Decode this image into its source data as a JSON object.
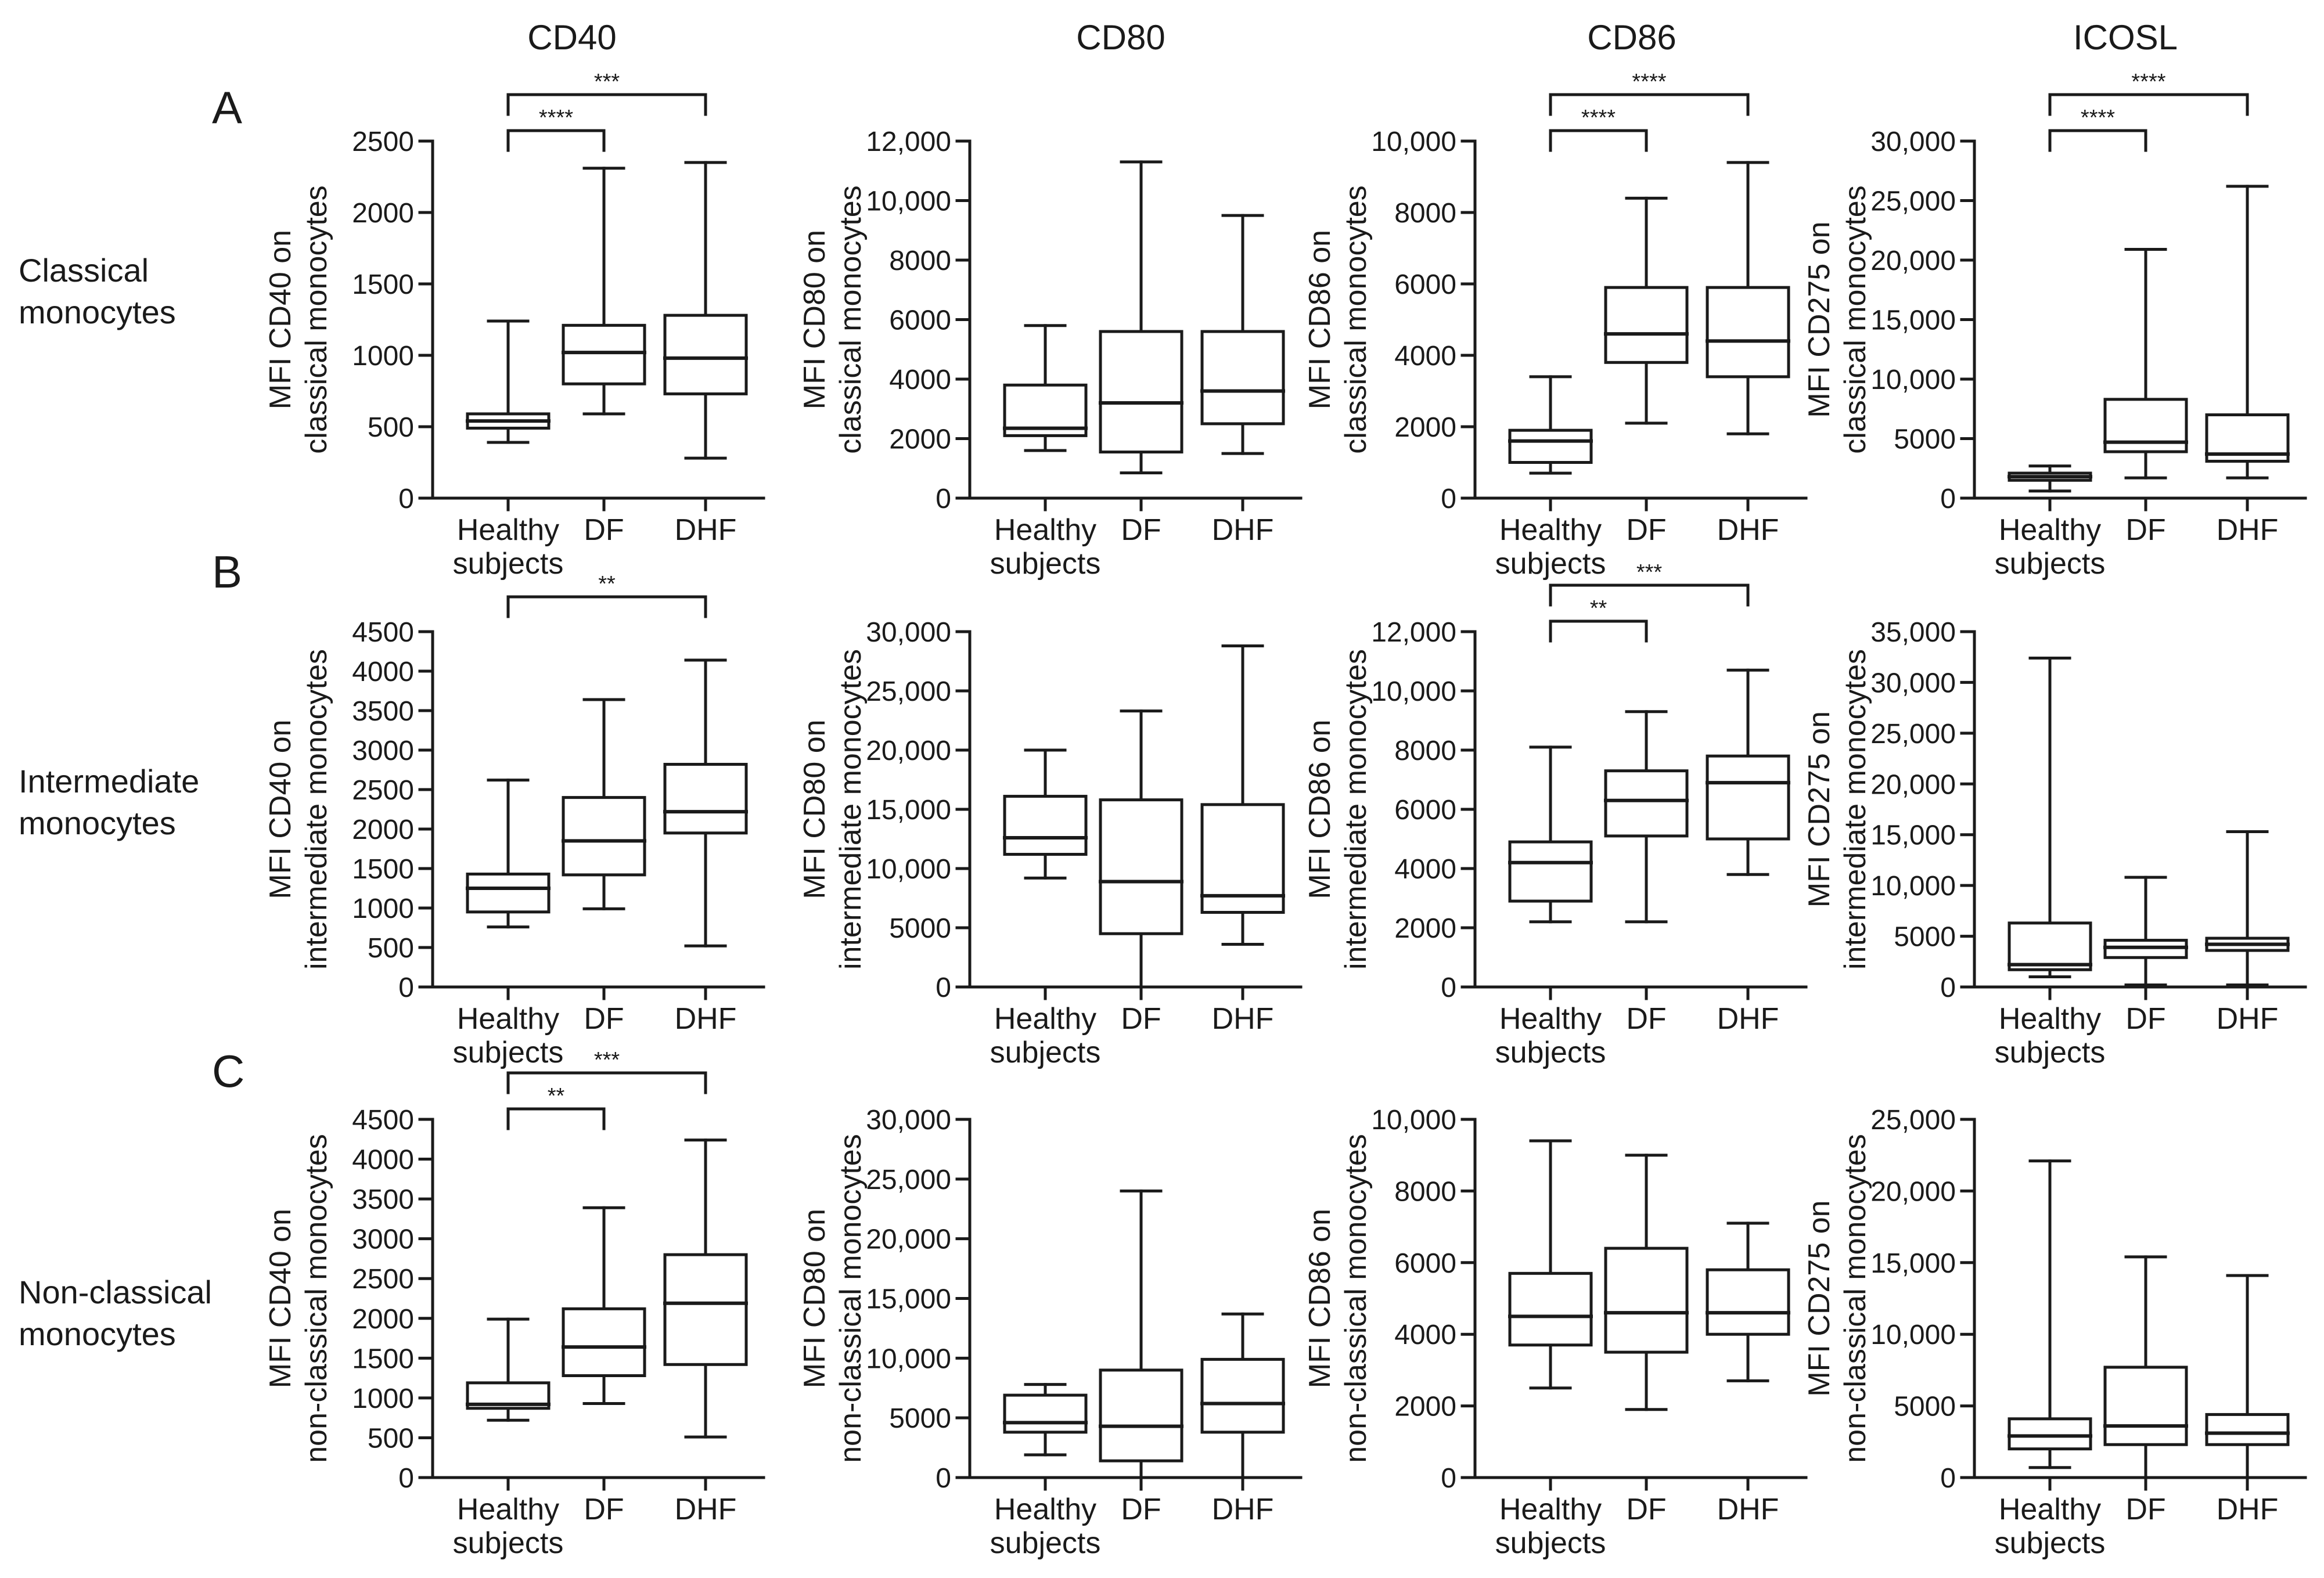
{
  "figure": {
    "column_titles": [
      "CD40",
      "CD80",
      "CD86",
      "ICOSL"
    ],
    "panel_letters": [
      "A",
      "B",
      "C"
    ],
    "row_labels": [
      [
        "Classical",
        "monocytes"
      ],
      [
        "Intermediate",
        "monocytes"
      ],
      [
        "Non-classical",
        "monocytes"
      ]
    ]
  },
  "chart_data": [
    {
      "type": "boxplot",
      "panel": "A",
      "marker": "CD40",
      "population": "Classical monocytes",
      "ylabel": [
        "MFI CD40 on",
        "classical monocytes"
      ],
      "categories": [
        [
          "Healthy",
          "subjects"
        ],
        [
          "DF"
        ],
        [
          "DHF"
        ]
      ],
      "ylim": [
        0,
        2500
      ],
      "yticks": [
        0,
        500,
        1000,
        1500,
        2000,
        2500
      ],
      "ytick_labels": [
        "0",
        "500",
        "1000",
        "1500",
        "2000",
        "2500"
      ],
      "boxes": [
        {
          "min": 390,
          "q1": 490,
          "median": 540,
          "q3": 590,
          "max": 1240
        },
        {
          "min": 590,
          "q1": 800,
          "median": 1020,
          "q3": 1210,
          "max": 2310
        },
        {
          "min": 280,
          "q1": 730,
          "median": 980,
          "q3": 1280,
          "max": 2350
        }
      ],
      "significance": [
        {
          "from": 0,
          "to": 1,
          "label": "****"
        },
        {
          "from": 0,
          "to": 2,
          "label": "***"
        }
      ]
    },
    {
      "type": "boxplot",
      "panel": "A",
      "marker": "CD80",
      "population": "Classical monocytes",
      "ylabel": [
        "MFI CD80 on",
        "classical monocytes"
      ],
      "categories": [
        [
          "Healthy",
          "subjects"
        ],
        [
          "DF"
        ],
        [
          "DHF"
        ]
      ],
      "ylim": [
        0,
        12000
      ],
      "yticks": [
        0,
        2000,
        4000,
        6000,
        8000,
        10000,
        12000
      ],
      "ytick_labels": [
        "0",
        "2000",
        "4000",
        "6000",
        "8000",
        "10,000",
        "12,000"
      ],
      "boxes": [
        {
          "min": 1600,
          "q1": 2100,
          "median": 2350,
          "q3": 3800,
          "max": 5800
        },
        {
          "min": 850,
          "q1": 1550,
          "median": 3200,
          "q3": 5600,
          "max": 11300
        },
        {
          "min": 1500,
          "q1": 2500,
          "median": 3600,
          "q3": 5600,
          "max": 9500
        }
      ],
      "significance": []
    },
    {
      "type": "boxplot",
      "panel": "A",
      "marker": "CD86",
      "population": "Classical monocytes",
      "ylabel": [
        "MFI CD86 on",
        "classical monocytes"
      ],
      "categories": [
        [
          "Healthy",
          "subjects"
        ],
        [
          "DF"
        ],
        [
          "DHF"
        ]
      ],
      "ylim": [
        0,
        10000
      ],
      "yticks": [
        0,
        2000,
        4000,
        6000,
        8000,
        10000
      ],
      "ytick_labels": [
        "0",
        "2000",
        "4000",
        "6000",
        "8000",
        "10,000"
      ],
      "boxes": [
        {
          "min": 700,
          "q1": 1000,
          "median": 1600,
          "q3": 1900,
          "max": 3400
        },
        {
          "min": 2100,
          "q1": 3800,
          "median": 4600,
          "q3": 5900,
          "max": 8400
        },
        {
          "min": 1800,
          "q1": 3400,
          "median": 4400,
          "q3": 5900,
          "max": 9400
        }
      ],
      "significance": [
        {
          "from": 0,
          "to": 1,
          "label": "****"
        },
        {
          "from": 0,
          "to": 2,
          "label": "****"
        }
      ]
    },
    {
      "type": "boxplot",
      "panel": "A",
      "marker": "ICOSL",
      "population": "Classical monocytes",
      "ylabel": [
        "MFI CD275 on",
        "classical monocytes"
      ],
      "categories": [
        [
          "Healthy",
          "subjects"
        ],
        [
          "DF"
        ],
        [
          "DHF"
        ]
      ],
      "ylim": [
        0,
        30000
      ],
      "yticks": [
        0,
        5000,
        10000,
        15000,
        20000,
        25000,
        30000
      ],
      "ytick_labels": [
        "0",
        "5000",
        "10,000",
        "15,000",
        "20,000",
        "25,000",
        "30,000"
      ],
      "boxes": [
        {
          "min": 600,
          "q1": 1500,
          "median": 1800,
          "q3": 2100,
          "max": 2700
        },
        {
          "min": 1700,
          "q1": 3900,
          "median": 4700,
          "q3": 8300,
          "max": 20900
        },
        {
          "min": 1700,
          "q1": 3100,
          "median": 3700,
          "q3": 7000,
          "max": 26200
        }
      ],
      "significance": [
        {
          "from": 0,
          "to": 1,
          "label": "****"
        },
        {
          "from": 0,
          "to": 2,
          "label": "****"
        }
      ]
    },
    {
      "type": "boxplot",
      "panel": "B",
      "marker": "CD40",
      "population": "Intermediate monocytes",
      "ylabel": [
        "MFI CD40 on",
        "intermediate monocytes"
      ],
      "categories": [
        [
          "Healthy",
          "subjects"
        ],
        [
          "DF"
        ],
        [
          "DHF"
        ]
      ],
      "ylim": [
        0,
        4500
      ],
      "yticks": [
        0,
        500,
        1000,
        1500,
        2000,
        2500,
        3000,
        3500,
        4000,
        4500
      ],
      "ytick_labels": [
        "0",
        "500",
        "1000",
        "1500",
        "2000",
        "2500",
        "3000",
        "3500",
        "4000",
        "4500"
      ],
      "boxes": [
        {
          "min": 760,
          "q1": 950,
          "median": 1250,
          "q3": 1430,
          "max": 2620
        },
        {
          "min": 990,
          "q1": 1420,
          "median": 1850,
          "q3": 2400,
          "max": 3640
        },
        {
          "min": 520,
          "q1": 1950,
          "median": 2220,
          "q3": 2820,
          "max": 4140
        }
      ],
      "significance": [
        {
          "from": 0,
          "to": 2,
          "label": "**"
        }
      ]
    },
    {
      "type": "boxplot",
      "panel": "B",
      "marker": "CD80",
      "population": "Intermediate monocytes",
      "ylabel": [
        "MFI CD80 on",
        "intermediate monocytes"
      ],
      "categories": [
        [
          "Healthy",
          "subjects"
        ],
        [
          "DF"
        ],
        [
          "DHF"
        ]
      ],
      "ylim": [
        0,
        30000
      ],
      "yticks": [
        0,
        5000,
        10000,
        15000,
        20000,
        25000,
        30000
      ],
      "ytick_labels": [
        "0",
        "5000",
        "10,000",
        "15,000",
        "20,000",
        "25,000",
        "30,000"
      ],
      "boxes": [
        {
          "min": 9200,
          "q1": 11200,
          "median": 12600,
          "q3": 16100,
          "max": 20000
        },
        {
          "min": 0,
          "q1": 4500,
          "median": 8900,
          "q3": 15800,
          "max": 23300
        },
        {
          "min": 3600,
          "q1": 6300,
          "median": 7700,
          "q3": 15400,
          "max": 28800
        }
      ],
      "significance": []
    },
    {
      "type": "boxplot",
      "panel": "B",
      "marker": "CD86",
      "population": "Intermediate monocytes",
      "ylabel": [
        "MFI CD86 on",
        "intermediate monocytes"
      ],
      "categories": [
        [
          "Healthy",
          "subjects"
        ],
        [
          "DF"
        ],
        [
          "DHF"
        ]
      ],
      "ylim": [
        0,
        12000
      ],
      "yticks": [
        0,
        2000,
        4000,
        6000,
        8000,
        10000,
        12000
      ],
      "ytick_labels": [
        "0",
        "2000",
        "4000",
        "6000",
        "8000",
        "10,000",
        "12,000"
      ],
      "boxes": [
        {
          "min": 2200,
          "q1": 2900,
          "median": 4200,
          "q3": 4900,
          "max": 8100
        },
        {
          "min": 2200,
          "q1": 5100,
          "median": 6300,
          "q3": 7300,
          "max": 9300
        },
        {
          "min": 3800,
          "q1": 5000,
          "median": 6900,
          "q3": 7800,
          "max": 10700
        }
      ],
      "significance": [
        {
          "from": 0,
          "to": 1,
          "label": "**"
        },
        {
          "from": 0,
          "to": 2,
          "label": "***"
        }
      ]
    },
    {
      "type": "boxplot",
      "panel": "B",
      "marker": "ICOSL",
      "population": "Intermediate monocytes",
      "ylabel": [
        "MFI CD275 on",
        "intermediate monocytes"
      ],
      "categories": [
        [
          "Healthy",
          "subjects"
        ],
        [
          "DF"
        ],
        [
          "DHF"
        ]
      ],
      "ylim": [
        0,
        35000
      ],
      "yticks": [
        0,
        5000,
        10000,
        15000,
        20000,
        25000,
        30000,
        35000
      ],
      "ytick_labels": [
        "0",
        "5000",
        "10,000",
        "15,000",
        "20,000",
        "25,000",
        "30,000",
        "35,000"
      ],
      "boxes": [
        {
          "min": 1000,
          "q1": 1700,
          "median": 2200,
          "q3": 6300,
          "max": 32400
        },
        {
          "min": 200,
          "q1": 2900,
          "median": 3900,
          "q3": 4600,
          "max": 10800
        },
        {
          "min": 200,
          "q1": 3600,
          "median": 4200,
          "q3": 4800,
          "max": 15300
        }
      ],
      "significance": []
    },
    {
      "type": "boxplot",
      "panel": "C",
      "marker": "CD40",
      "population": "Non-classical monocytes",
      "ylabel": [
        "MFI CD40 on",
        "non-classical monocytes"
      ],
      "categories": [
        [
          "Healthy",
          "subjects"
        ],
        [
          "DF"
        ],
        [
          "DHF"
        ]
      ],
      "ylim": [
        0,
        4500
      ],
      "yticks": [
        0,
        500,
        1000,
        1500,
        2000,
        2500,
        3000,
        3500,
        4000,
        4500
      ],
      "ytick_labels": [
        "0",
        "500",
        "1000",
        "1500",
        "2000",
        "2500",
        "3000",
        "3500",
        "4000",
        "4500"
      ],
      "boxes": [
        {
          "min": 720,
          "q1": 870,
          "median": 920,
          "q3": 1190,
          "max": 1990
        },
        {
          "min": 930,
          "q1": 1280,
          "median": 1640,
          "q3": 2120,
          "max": 3390
        },
        {
          "min": 510,
          "q1": 1420,
          "median": 2190,
          "q3": 2800,
          "max": 4240
        }
      ],
      "significance": [
        {
          "from": 0,
          "to": 1,
          "label": "**"
        },
        {
          "from": 0,
          "to": 2,
          "label": "***"
        }
      ]
    },
    {
      "type": "boxplot",
      "panel": "C",
      "marker": "CD80",
      "population": "Non-classical monocytes",
      "ylabel": [
        "MFI CD80 on",
        "non-classical monocytes"
      ],
      "categories": [
        [
          "Healthy",
          "subjects"
        ],
        [
          "DF"
        ],
        [
          "DHF"
        ]
      ],
      "ylim": [
        0,
        30000
      ],
      "yticks": [
        0,
        5000,
        10000,
        15000,
        20000,
        25000,
        30000
      ],
      "ytick_labels": [
        "0",
        "5000",
        "10,000",
        "15,000",
        "20,000",
        "25,000",
        "30,000"
      ],
      "boxes": [
        {
          "min": 1900,
          "q1": 3800,
          "median": 4600,
          "q3": 6900,
          "max": 7800
        },
        {
          "min": 0,
          "q1": 1400,
          "median": 4300,
          "q3": 9000,
          "max": 24000
        },
        {
          "min": 0,
          "q1": 3800,
          "median": 6200,
          "q3": 9900,
          "max": 13700
        }
      ],
      "significance": []
    },
    {
      "type": "boxplot",
      "panel": "C",
      "marker": "CD86",
      "population": "Non-classical monocytes",
      "ylabel": [
        "MFI CD86 on",
        "non-classical monocytes"
      ],
      "categories": [
        [
          "Healthy",
          "subjects"
        ],
        [
          "DF"
        ],
        [
          "DHF"
        ]
      ],
      "ylim": [
        0,
        10000
      ],
      "yticks": [
        0,
        2000,
        4000,
        6000,
        8000,
        10000
      ],
      "ytick_labels": [
        "0",
        "2000",
        "4000",
        "6000",
        "8000",
        "10,000"
      ],
      "boxes": [
        {
          "min": 2500,
          "q1": 3700,
          "median": 4500,
          "q3": 5700,
          "max": 9400
        },
        {
          "min": 1900,
          "q1": 3500,
          "median": 4600,
          "q3": 6400,
          "max": 9000
        },
        {
          "min": 2700,
          "q1": 4000,
          "median": 4600,
          "q3": 5800,
          "max": 7100
        }
      ],
      "significance": []
    },
    {
      "type": "boxplot",
      "panel": "C",
      "marker": "ICOSL",
      "population": "Non-classical monocytes",
      "ylabel": [
        "MFI CD275 on",
        "non-classical monocytes"
      ],
      "categories": [
        [
          "Healthy",
          "subjects"
        ],
        [
          "DF"
        ],
        [
          "DHF"
        ]
      ],
      "ylim": [
        0,
        25000
      ],
      "yticks": [
        0,
        5000,
        10000,
        15000,
        20000,
        25000
      ],
      "ytick_labels": [
        "0",
        "5000",
        "10,000",
        "15,000",
        "20,000",
        "25,000"
      ],
      "boxes": [
        {
          "min": 700,
          "q1": 2000,
          "median": 2900,
          "q3": 4100,
          "max": 22100
        },
        {
          "min": 0,
          "q1": 2300,
          "median": 3600,
          "q3": 7700,
          "max": 15400
        },
        {
          "min": 0,
          "q1": 2300,
          "median": 3100,
          "q3": 4400,
          "max": 14100
        }
      ],
      "significance": []
    }
  ]
}
